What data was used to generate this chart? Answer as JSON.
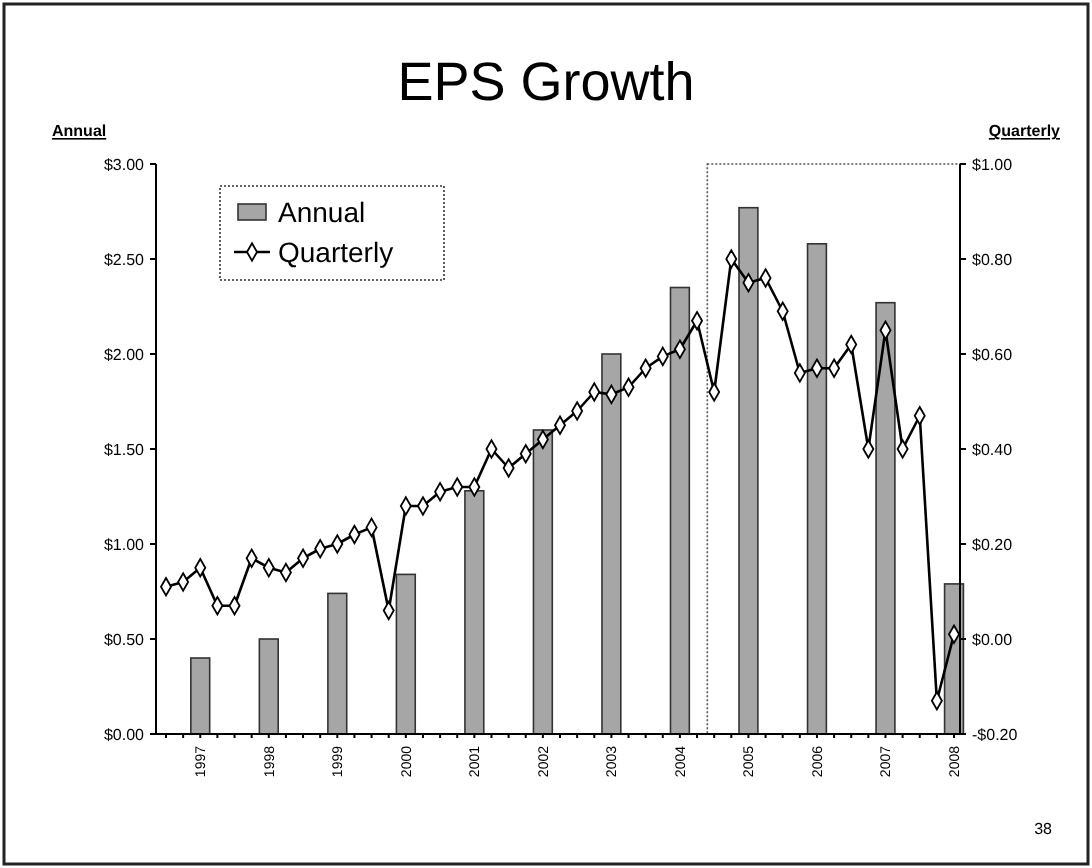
{
  "chart_data": {
    "type": "bar",
    "title": "EPS Growth",
    "ylabel": "Annual",
    "y2label": "Quarterly",
    "categories": [
      null,
      null,
      "1997",
      null,
      null,
      null,
      "1998",
      null,
      null,
      null,
      "1999",
      null,
      null,
      null,
      "2000",
      null,
      null,
      null,
      "2001",
      null,
      null,
      null,
      "2002",
      null,
      null,
      null,
      "2003",
      null,
      null,
      null,
      "2004",
      null,
      null,
      null,
      "2005",
      null,
      null,
      null,
      "2006",
      null,
      null,
      null,
      "2007",
      null,
      null,
      null,
      "2008"
    ],
    "series": [
      {
        "name": "Annual",
        "color": "#a6a6a6",
        "values": [
          null,
          null,
          0.4,
          null,
          null,
          null,
          0.5,
          null,
          null,
          null,
          0.74,
          null,
          null,
          null,
          0.84,
          null,
          null,
          null,
          1.28,
          null,
          null,
          null,
          1.6,
          null,
          null,
          null,
          2.0,
          null,
          null,
          null,
          2.35,
          null,
          null,
          null,
          2.77,
          null,
          null,
          null,
          2.58,
          null,
          null,
          null,
          2.27,
          null,
          null,
          null,
          0.79
        ]
      },
      {
        "name": "Quarterly",
        "type": "line",
        "axis": "y2",
        "color": "#000000",
        "values": [
          0.11,
          0.12,
          0.15,
          0.07,
          0.07,
          0.17,
          0.15,
          0.14,
          0.17,
          0.19,
          0.2,
          0.22,
          0.235,
          0.06,
          0.28,
          0.28,
          0.31,
          0.32,
          0.32,
          0.4,
          0.36,
          0.39,
          0.42,
          0.45,
          0.48,
          0.52,
          0.515,
          0.53,
          0.57,
          0.595,
          0.61,
          0.67,
          0.52,
          0.8,
          0.75,
          0.76,
          0.69,
          0.56,
          0.57,
          0.57,
          0.62,
          0.4,
          0.65,
          0.4,
          0.47,
          -0.13,
          0.01
        ]
      }
    ],
    "ylim": [
      0,
      3
    ],
    "yticks": [
      {
        "value": 0,
        "label": "$0.00"
      },
      {
        "value": 0.5,
        "label": "$0.50"
      },
      {
        "value": 1,
        "label": "$1.00"
      },
      {
        "value": 1.5,
        "label": "$1.50"
      },
      {
        "value": 2,
        "label": "$2.00"
      },
      {
        "value": 2.5,
        "label": "$2.50"
      },
      {
        "value": 3,
        "label": "$3.00"
      }
    ],
    "y2lim": [
      -0.2,
      1
    ],
    "y2ticks": [
      {
        "value": -0.2,
        "label": "-$0.20"
      },
      {
        "value": 0,
        "label": "$0.00"
      },
      {
        "value": 0.2,
        "label": "$0.20"
      },
      {
        "value": 0.4,
        "label": "$0.40"
      },
      {
        "value": 0.6,
        "label": "$0.60"
      },
      {
        "value": 0.8,
        "label": "$0.80"
      },
      {
        "value": 1,
        "label": "$1.00"
      }
    ],
    "legend": "top left",
    "marker": "diamond",
    "grid": false,
    "annotations": [
      "38"
    ]
  }
}
